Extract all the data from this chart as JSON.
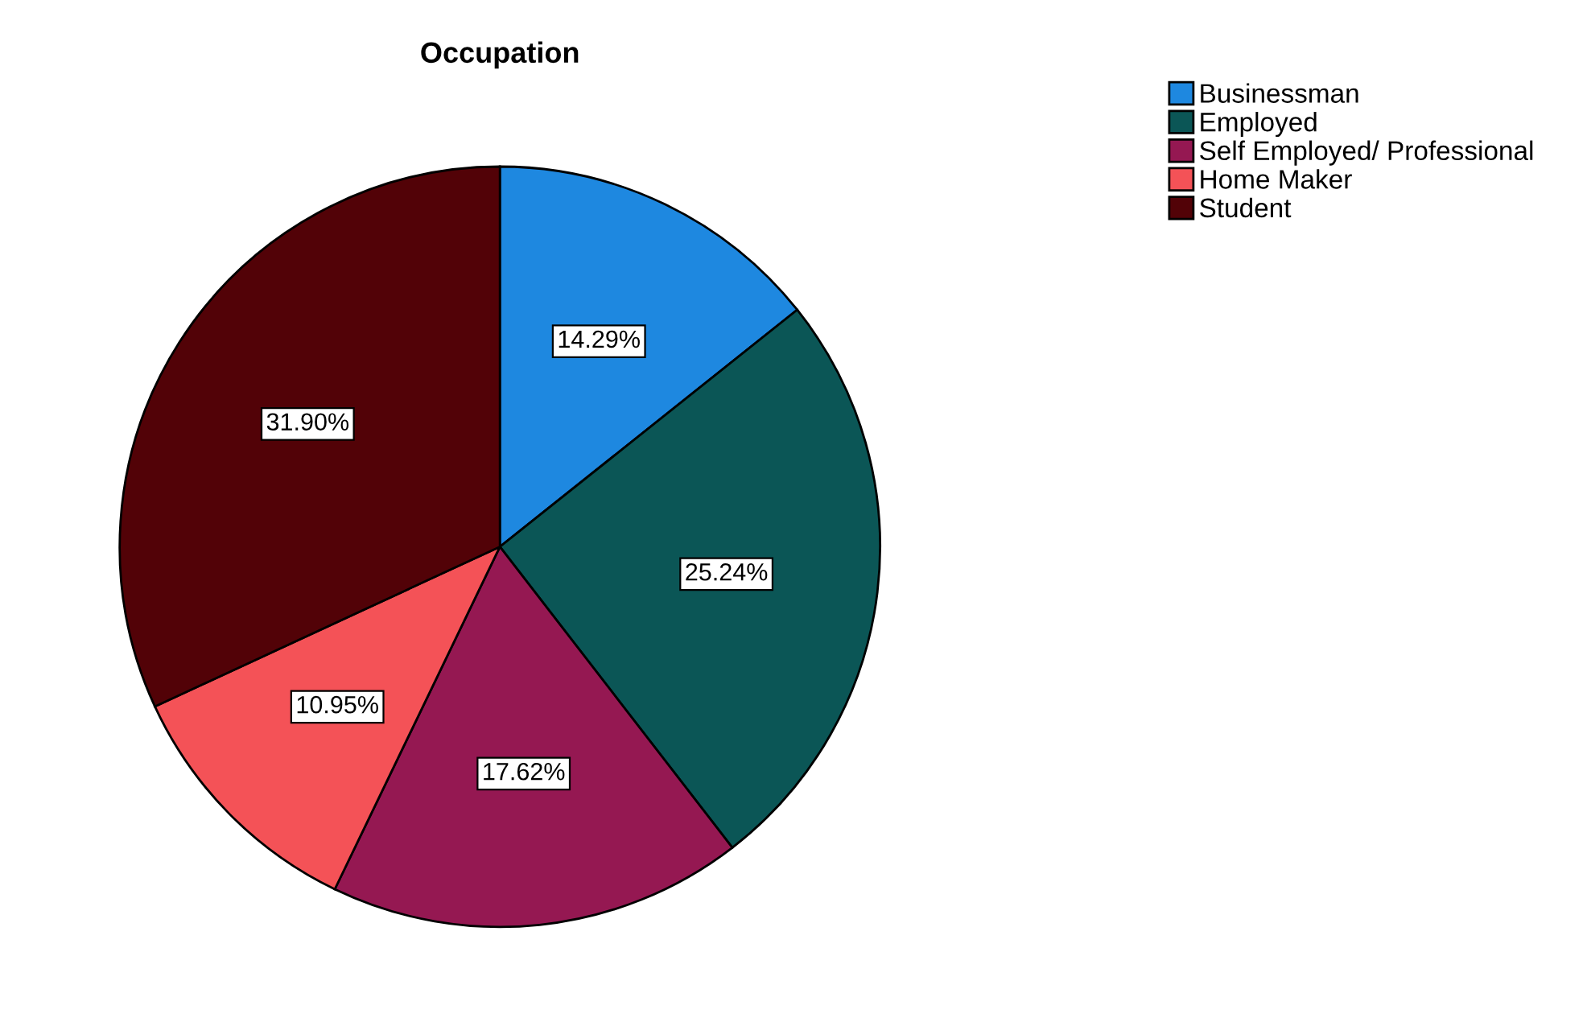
{
  "chart_data": {
    "type": "pie",
    "title": "Occupation",
    "categories": [
      "Businessman",
      "Employed",
      "Self Employed/ Professional",
      "Home Maker",
      "Student"
    ],
    "values": [
      14.29,
      25.24,
      17.62,
      10.95,
      31.9
    ],
    "colors": [
      "#1e88e0",
      "#0b5656",
      "#951852",
      "#f45257",
      "#520207"
    ],
    "value_labels": [
      "14.29%",
      "25.24%",
      "17.62%",
      "10.95%",
      "31.90%"
    ],
    "legend": "top right"
  }
}
